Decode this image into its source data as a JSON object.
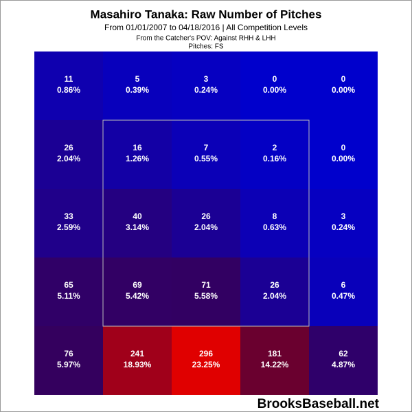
{
  "chart_data": {
    "type": "heatmap",
    "title": "Masahiro Tanaka: Raw Number of Pitches",
    "subtitle": "From 01/01/2007 to 04/18/2016 | All Competition Levels",
    "notes": [
      "From the Catcher's POV:  Against RHH & LHH",
      "Pitches:  FS"
    ],
    "counts": [
      [
        11,
        5,
        3,
        0,
        0
      ],
      [
        26,
        16,
        7,
        2,
        0
      ],
      [
        33,
        40,
        26,
        8,
        3
      ],
      [
        65,
        69,
        71,
        26,
        6
      ],
      [
        76,
        241,
        296,
        181,
        62
      ]
    ],
    "percents": [
      [
        0.86,
        0.39,
        0.24,
        0.0,
        0.0
      ],
      [
        2.04,
        1.26,
        0.55,
        0.16,
        0.0
      ],
      [
        2.59,
        3.14,
        2.04,
        0.63,
        0.24
      ],
      [
        5.11,
        5.42,
        5.58,
        2.04,
        0.47
      ],
      [
        5.97,
        18.93,
        23.25,
        14.22,
        4.87
      ]
    ],
    "percent_labels": [
      [
        "0.86%",
        "0.39%",
        "0.24%",
        "0.00%",
        "0.00%"
      ],
      [
        "2.04%",
        "1.26%",
        "0.55%",
        "0.16%",
        "0.00%"
      ],
      [
        "2.59%",
        "3.14%",
        "2.04%",
        "0.63%",
        "0.24%"
      ],
      [
        "5.11%",
        "5.42%",
        "5.58%",
        "2.04%",
        "0.47%"
      ],
      [
        "5.97%",
        "18.93%",
        "23.25%",
        "14.22%",
        "4.87%"
      ]
    ],
    "low_color": "#0000cc",
    "high_color": "#e00000",
    "watermark": "BrooksBaseball.net"
  }
}
